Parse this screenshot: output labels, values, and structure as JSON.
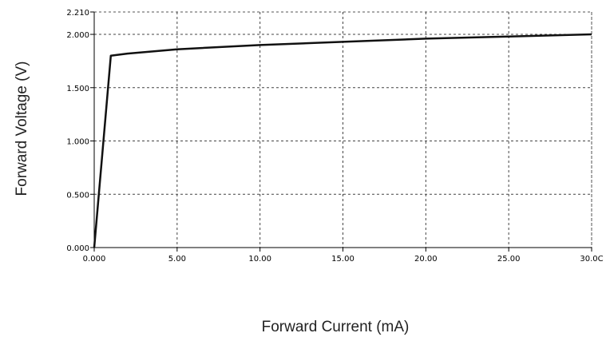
{
  "chart_data": {
    "type": "line",
    "xlabel": "Forward Current (mA)",
    "ylabel": "Forward Voltage (V)",
    "xlim": [
      0,
      30
    ],
    "ylim": [
      0,
      2.21
    ],
    "x_ticks": [
      0,
      5,
      10,
      15,
      20,
      25,
      30
    ],
    "x_tick_labels": [
      "0.000",
      "5.00",
      "10.00",
      "15.00",
      "20.00",
      "25.00",
      "30.0C"
    ],
    "y_ticks": [
      0,
      0.5,
      1.0,
      1.5,
      2.0,
      2.21
    ],
    "y_tick_labels": [
      "0.000",
      "0.500",
      "1.000",
      "1.500",
      "2.000",
      "2.210"
    ],
    "grid": true,
    "series": [
      {
        "x": [
          0,
          1,
          2,
          5,
          10,
          15,
          20,
          25,
          30
        ],
        "y": [
          0,
          1.8,
          1.82,
          1.86,
          1.9,
          1.93,
          1.96,
          1.98,
          2.0
        ]
      }
    ]
  }
}
